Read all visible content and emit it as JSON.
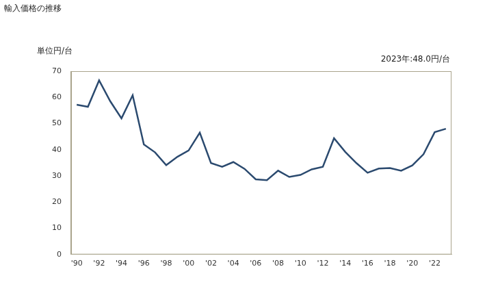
{
  "chart_data": {
    "type": "line",
    "title": "輸入価格の推移",
    "y_axis_label": "単位円/台",
    "annotation": "2023年:48.0円/台",
    "categories": [
      "'90",
      null,
      "'92",
      null,
      "'94",
      null,
      "'96",
      null,
      "'98",
      null,
      "'00",
      null,
      "'02",
      null,
      "'04",
      null,
      "'06",
      null,
      "'08",
      null,
      "'10",
      null,
      "'12",
      null,
      "'14",
      null,
      "'16",
      null,
      "'18",
      null,
      "'20",
      null,
      "'22",
      null
    ],
    "values": [
      57.2,
      56.4,
      66.5,
      58.5,
      52.0,
      60.8,
      42.0,
      39.0,
      34.1,
      37.3,
      39.7,
      46.5,
      34.9,
      33.5,
      35.3,
      32.7,
      28.7,
      28.4,
      32.0,
      29.6,
      30.4,
      32.5,
      33.5,
      44.4,
      39.2,
      34.9,
      31.2,
      32.8,
      33.0,
      32.0,
      34.0,
      38.3,
      46.7,
      48.0
    ],
    "color": "#2b4a6f",
    "ylim": [
      0,
      70
    ],
    "yticks": [
      0,
      10,
      20,
      30,
      40,
      50,
      60,
      70
    ],
    "grid": false
  }
}
